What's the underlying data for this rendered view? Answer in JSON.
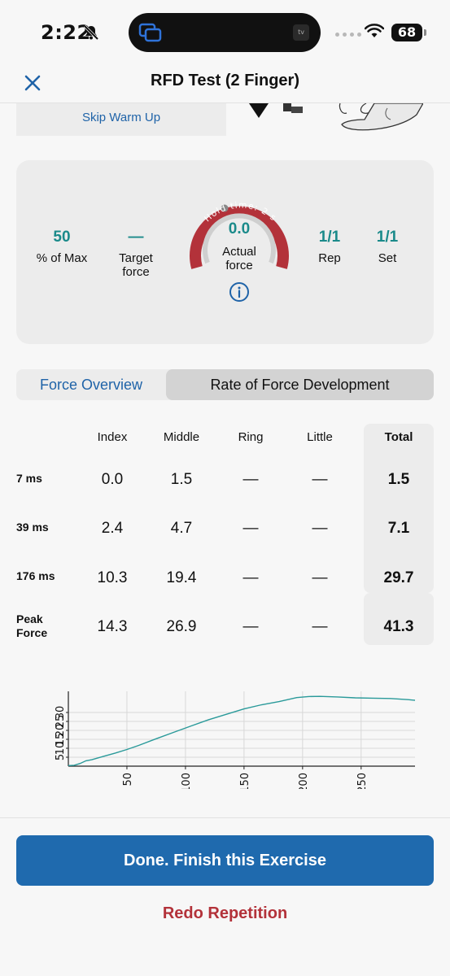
{
  "status_bar": {
    "time": "2:22",
    "battery": "68",
    "tv_label": "tv"
  },
  "header": {
    "title": "RFD Test (2 Finger)"
  },
  "skip_warmup": "Skip Warm Up",
  "gauge_card": {
    "percent_of_max": {
      "value": "50",
      "label": "% of Max"
    },
    "target_force": {
      "value": "—",
      "label": "Target force"
    },
    "actual_force": {
      "value": "0.0",
      "label": "Actual force",
      "arc_text": "Hold time: 2 s"
    },
    "rep": {
      "value": "1/1",
      "label": "Rep"
    },
    "set": {
      "value": "1/1",
      "label": "Set"
    }
  },
  "tabs": [
    {
      "label": "Force Overview",
      "active": false
    },
    {
      "label": "Rate of Force Development",
      "active": true
    }
  ],
  "table": {
    "columns": [
      "Index",
      "Middle",
      "Ring",
      "Little",
      "Total"
    ],
    "rows": [
      {
        "label": "7 ms",
        "values": [
          "0.0",
          "1.5",
          "—",
          "—",
          "1.5"
        ]
      },
      {
        "label": "39 ms",
        "values": [
          "2.4",
          "4.7",
          "—",
          "—",
          "7.1"
        ]
      },
      {
        "label": "176 ms",
        "values": [
          "10.3",
          "19.4",
          "—",
          "—",
          "29.7"
        ]
      },
      {
        "label": "Peak Force",
        "values": [
          "14.3",
          "26.9",
          "—",
          "—",
          "41.3"
        ]
      }
    ]
  },
  "chart_data": {
    "type": "line",
    "x": [
      0,
      5,
      10,
      15,
      20,
      30,
      40,
      50,
      60,
      75,
      90,
      105,
      120,
      135,
      150,
      165,
      180,
      195,
      205,
      215,
      230,
      245,
      260,
      275,
      290,
      296
    ],
    "y": [
      0.3,
      0.5,
      1.5,
      3.0,
      3.6,
      5.5,
      7.3,
      9.3,
      11.6,
      15.3,
      18.9,
      22.5,
      26.0,
      29.0,
      32.0,
      34.3,
      36.1,
      38.3,
      38.9,
      39.0,
      38.7,
      38.2,
      38.0,
      37.8,
      37.2,
      36.8
    ],
    "x_ticks": [
      "50",
      "100",
      "150",
      "200",
      "250"
    ],
    "y_ticks": [
      "5",
      "10",
      "15",
      "20",
      "25",
      "30"
    ],
    "xlim": [
      0,
      296
    ],
    "ylim": [
      0,
      40
    ],
    "grid": true,
    "line_color": "#2a9a9a"
  },
  "done_button": "Done. Finish this Exercise",
  "redo_button": "Redo Repetition",
  "colors": {
    "accent_blue": "#1f6aae",
    "teal": "#1a8a8a",
    "gauge_red": "#b3323a",
    "redo_red": "#b3323a"
  }
}
